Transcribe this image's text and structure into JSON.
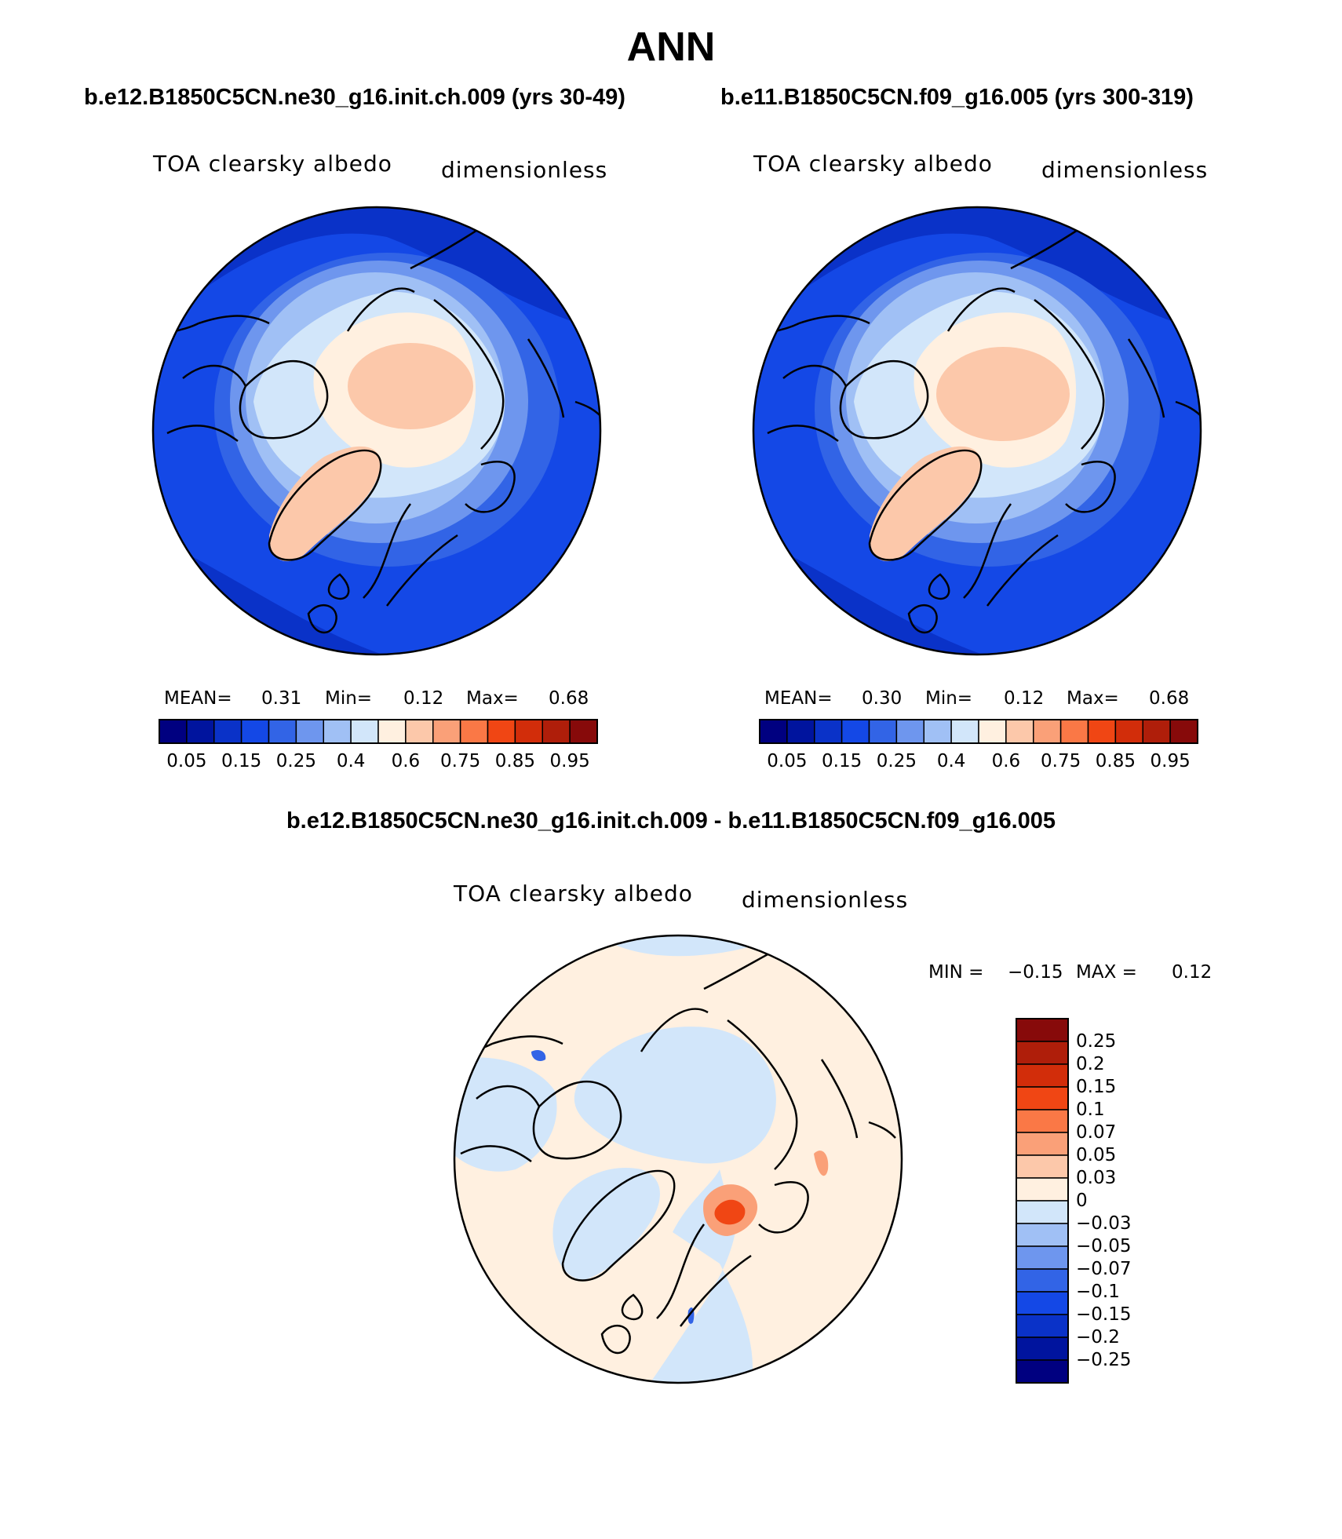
{
  "title": "ANN",
  "panels": [
    {
      "case_title": "b.e12.B1850C5CN.ne30_g16.init.ch.009 (yrs 30-49)",
      "variable": "TOA clearsky albedo",
      "units": "dimensionless",
      "mean_label": "MEAN=",
      "mean": "0.31",
      "min_label": "Min=",
      "min": "0.12",
      "max_label": "Max=",
      "max": "0.68"
    },
    {
      "case_title": "b.e11.B1850C5CN.f09_g16.005 (yrs 300-319)",
      "variable": "TOA clearsky albedo",
      "units": "dimensionless",
      "mean_label": "MEAN=",
      "mean": "0.30",
      "min_label": "Min=",
      "min": "0.12",
      "max_label": "Max=",
      "max": "0.68"
    }
  ],
  "colorbar": {
    "colors": [
      "#000080",
      "#00149e",
      "#0a32c8",
      "#1448e6",
      "#3264e6",
      "#6e96ee",
      "#a0c0f5",
      "#d2e6fa",
      "#fff0e0",
      "#fcc8aa",
      "#faa078",
      "#fa7846",
      "#f04614",
      "#d22d0a",
      "#af1e0a",
      "#870a0a"
    ],
    "tick_labels": [
      "0.05",
      "0.15",
      "0.25",
      "0.4",
      "0.6",
      "0.75",
      "0.85",
      "0.95"
    ]
  },
  "difference": {
    "title": "b.e12.B1850C5CN.ne30_g16.init.ch.009 - b.e11.B1850C5CN.f09_g16.005",
    "variable": "TOA clearsky albedo",
    "units": "dimensionless",
    "min_label": "MIN =",
    "min": "−0.15",
    "max_label": "MAX =",
    "max": "0.12",
    "colors": [
      "#000080",
      "#00149e",
      "#0a32c8",
      "#1448e6",
      "#3264e6",
      "#6e96ee",
      "#a0c0f5",
      "#d2e6fa",
      "#fff0e0",
      "#fcc8aa",
      "#faa078",
      "#fa7846",
      "#f04614",
      "#d22d0a",
      "#af1e0a",
      "#870a0a"
    ],
    "tick_labels": [
      "−0.25",
      "−0.2",
      "−0.15",
      "−0.1",
      "−0.07",
      "−0.05",
      "−0.03",
      "0",
      "0.03",
      "0.05",
      "0.07",
      "0.1",
      "0.15",
      "0.2",
      "0.25"
    ]
  }
}
